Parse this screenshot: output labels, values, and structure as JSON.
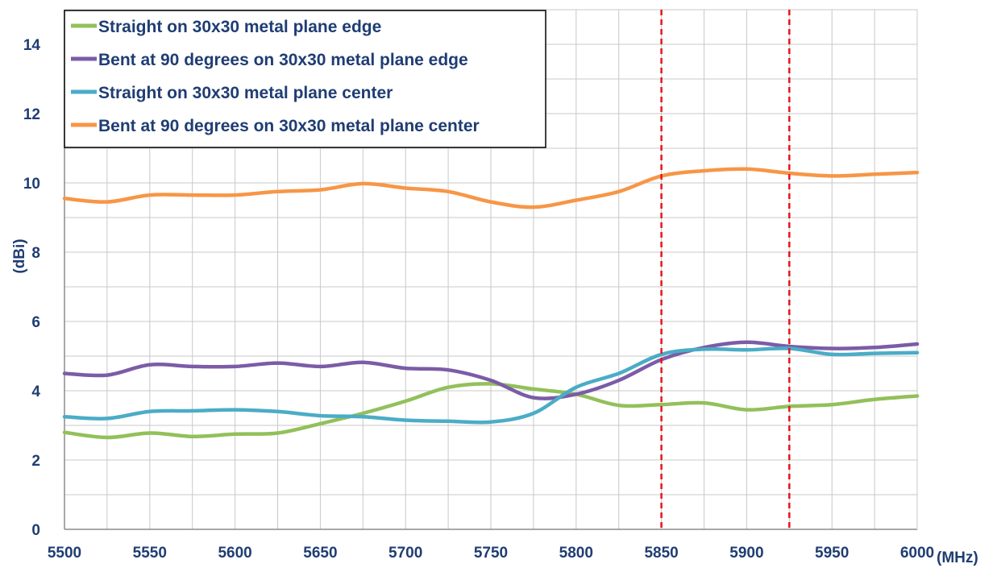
{
  "chart_data": {
    "type": "line",
    "xlabel": "(MHz)",
    "ylabel": "(dBi)",
    "xlim": [
      5500,
      6000
    ],
    "ylim": [
      0,
      15
    ],
    "x_ticks": [
      5500,
      5550,
      5600,
      5650,
      5700,
      5750,
      5800,
      5850,
      5900,
      5950,
      6000
    ],
    "y_ticks": [
      0,
      2,
      4,
      6,
      8,
      10,
      12,
      14
    ],
    "grid": true,
    "legend_position": "top-left",
    "reference_lines": [
      5850,
      5925
    ],
    "reference_line_color": "#e8141b",
    "x": [
      5500,
      5525,
      5550,
      5575,
      5600,
      5625,
      5650,
      5675,
      5700,
      5725,
      5750,
      5775,
      5800,
      5825,
      5850,
      5875,
      5900,
      5925,
      5950,
      5975,
      6000
    ],
    "series": [
      {
        "name": "Straight on 30x30 metal plane edge",
        "color": "#92c05a",
        "values": [
          2.8,
          2.65,
          2.78,
          2.68,
          2.75,
          2.78,
          3.05,
          3.35,
          3.7,
          4.1,
          4.2,
          4.05,
          3.9,
          3.58,
          3.6,
          3.65,
          3.45,
          3.55,
          3.6,
          3.75,
          3.85
        ]
      },
      {
        "name": "Bent at 90 degrees on 30x30 metal plane edge",
        "color": "#7b5ca7",
        "values": [
          4.5,
          4.45,
          4.75,
          4.7,
          4.7,
          4.8,
          4.7,
          4.82,
          4.65,
          4.6,
          4.3,
          3.8,
          3.9,
          4.3,
          4.9,
          5.25,
          5.4,
          5.28,
          5.22,
          5.25,
          5.35
        ]
      },
      {
        "name": "Straight on 30x30 metal plane center",
        "color": "#4bacc6",
        "values": [
          3.25,
          3.2,
          3.4,
          3.42,
          3.45,
          3.4,
          3.28,
          3.25,
          3.15,
          3.12,
          3.1,
          3.35,
          4.1,
          4.5,
          5.05,
          5.2,
          5.18,
          5.22,
          5.05,
          5.08,
          5.1
        ]
      },
      {
        "name": "Bent at 90 degrees on 30x30 metal plane center",
        "color": "#f79646",
        "values": [
          9.55,
          9.45,
          9.65,
          9.65,
          9.65,
          9.75,
          9.8,
          9.98,
          9.85,
          9.75,
          9.45,
          9.3,
          9.5,
          9.75,
          10.2,
          10.35,
          10.4,
          10.28,
          10.2,
          10.25,
          10.3
        ]
      }
    ]
  }
}
